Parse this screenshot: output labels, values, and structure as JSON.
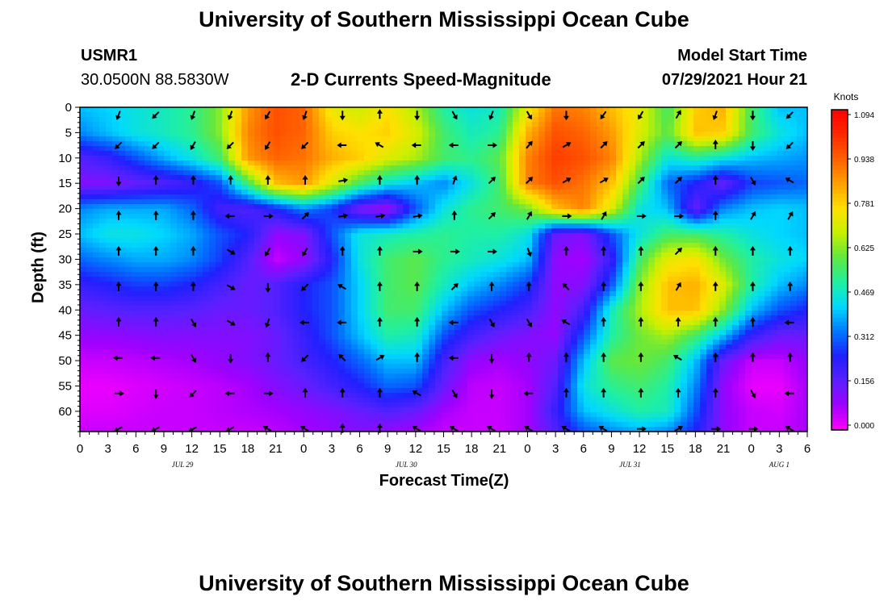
{
  "page": {
    "title_top": "University of Southern Mississippi Ocean Cube",
    "title_bottom": "University of Southern Mississippi Ocean Cube",
    "station_id": "USMR1",
    "station_coords": "30.0500N  88.5830W",
    "subtitle": "2-D Currents Speed-Magnitude",
    "model_label": "Model Start Time",
    "model_time": "07/29/2021 Hour 21"
  },
  "colors": {
    "scale": [
      "#ff00ff",
      "#a000ff",
      "#5a20ff",
      "#2020ff",
      "#0078ff",
      "#00d8ff",
      "#20f0a0",
      "#60e840",
      "#c8f000",
      "#ffe000",
      "#ffa000",
      "#ff6000",
      "#ff2800",
      "#ff0000"
    ],
    "arrow": "#000000",
    "frame": "#000000"
  },
  "chart_data": {
    "type": "heatmap",
    "title": "2-D Currents Speed-Magnitude",
    "xlabel": "Forecast Time(Z)",
    "ylabel": "Depth (ft)",
    "x_tick_labels": [
      "0",
      "3",
      "6",
      "9",
      "12",
      "15",
      "18",
      "21",
      "0",
      "3",
      "6",
      "9",
      "12",
      "15",
      "18",
      "21",
      "0",
      "3",
      "6",
      "9",
      "12",
      "15",
      "18",
      "21",
      "0",
      "3",
      "6"
    ],
    "x_hours": [
      0,
      3,
      6,
      9,
      12,
      15,
      18,
      21,
      24,
      27,
      30,
      33,
      36,
      39,
      42,
      45,
      48,
      51,
      54,
      57,
      60,
      63,
      66,
      69,
      72,
      75,
      78
    ],
    "date_labels": [
      {
        "text": "JUL 29",
        "hour": 11
      },
      {
        "text": "JUL 30",
        "hour": 35
      },
      {
        "text": "JUL 31",
        "hour": 59
      },
      {
        "text": "AUG 1",
        "hour": 75
      }
    ],
    "y_ticks": [
      0,
      5,
      10,
      15,
      20,
      25,
      30,
      35,
      40,
      45,
      50,
      55,
      60
    ],
    "xlim": [
      0,
      78
    ],
    "ylim": [
      0,
      64
    ],
    "colorbar": {
      "unit": "Knots",
      "ticks": [
        "1.094",
        "0.938",
        "0.781",
        "0.625",
        "0.469",
        "0.312",
        "0.156",
        "0.000"
      ],
      "range": [
        0,
        1.094
      ]
    },
    "speed_grid": {
      "hours": [
        0,
        3,
        6,
        9,
        12,
        15,
        18,
        21,
        24,
        27,
        30,
        33,
        36,
        39,
        42,
        45,
        48,
        51,
        54,
        57,
        60,
        63,
        66,
        69,
        72,
        75,
        78
      ],
      "depths": [
        0,
        5,
        10,
        15,
        20,
        25,
        30,
        35,
        40,
        45,
        50,
        55,
        60,
        64
      ],
      "values": [
        [
          0.4,
          0.42,
          0.45,
          0.48,
          0.52,
          0.62,
          0.85,
          0.95,
          0.92,
          0.72,
          0.68,
          0.75,
          0.65,
          0.5,
          0.45,
          0.48,
          0.72,
          0.9,
          0.88,
          0.8,
          0.72,
          0.55,
          0.78,
          0.82,
          0.55,
          0.4,
          0.4
        ],
        [
          0.35,
          0.4,
          0.45,
          0.48,
          0.52,
          0.62,
          0.88,
          0.95,
          0.92,
          0.78,
          0.75,
          0.78,
          0.7,
          0.55,
          0.48,
          0.52,
          0.82,
          0.95,
          0.92,
          0.85,
          0.7,
          0.58,
          0.8,
          0.78,
          0.55,
          0.45,
          0.4
        ],
        [
          0.18,
          0.22,
          0.3,
          0.38,
          0.45,
          0.55,
          0.85,
          0.92,
          0.9,
          0.82,
          0.78,
          0.7,
          0.65,
          0.55,
          0.52,
          0.58,
          0.88,
          0.98,
          0.95,
          0.88,
          0.65,
          0.45,
          0.5,
          0.45,
          0.4,
          0.38,
          0.36
        ],
        [
          0.12,
          0.12,
          0.15,
          0.18,
          0.22,
          0.3,
          0.55,
          0.8,
          0.85,
          0.7,
          0.55,
          0.45,
          0.4,
          0.35,
          0.45,
          0.55,
          0.88,
          0.95,
          0.9,
          0.8,
          0.55,
          0.32,
          0.25,
          0.15,
          0.28,
          0.3,
          0.32
        ],
        [
          0.35,
          0.38,
          0.38,
          0.38,
          0.32,
          0.2,
          0.18,
          0.25,
          0.35,
          0.28,
          0.12,
          0.08,
          0.3,
          0.45,
          0.52,
          0.55,
          0.6,
          0.8,
          0.88,
          0.7,
          0.45,
          0.4,
          0.15,
          0.35,
          0.4,
          0.42,
          0.4
        ],
        [
          0.4,
          0.45,
          0.45,
          0.42,
          0.38,
          0.3,
          0.25,
          0.1,
          0.12,
          0.3,
          0.45,
          0.48,
          0.5,
          0.52,
          0.5,
          0.5,
          0.45,
          0.15,
          0.12,
          0.3,
          0.45,
          0.55,
          0.55,
          0.5,
          0.45,
          0.42,
          0.4
        ],
        [
          0.32,
          0.35,
          0.38,
          0.38,
          0.35,
          0.28,
          0.18,
          0.05,
          0.1,
          0.25,
          0.45,
          0.55,
          0.58,
          0.52,
          0.48,
          0.45,
          0.4,
          0.1,
          0.08,
          0.22,
          0.55,
          0.72,
          0.75,
          0.6,
          0.5,
          0.45,
          0.42
        ],
        [
          0.22,
          0.25,
          0.28,
          0.28,
          0.25,
          0.2,
          0.15,
          0.18,
          0.25,
          0.3,
          0.42,
          0.55,
          0.58,
          0.48,
          0.4,
          0.35,
          0.28,
          0.1,
          0.12,
          0.3,
          0.62,
          0.8,
          0.82,
          0.7,
          0.5,
          0.4,
          0.35
        ],
        [
          0.15,
          0.17,
          0.18,
          0.18,
          0.17,
          0.15,
          0.15,
          0.18,
          0.25,
          0.3,
          0.42,
          0.55,
          0.55,
          0.4,
          0.3,
          0.25,
          0.2,
          0.1,
          0.2,
          0.48,
          0.65,
          0.8,
          0.8,
          0.62,
          0.4,
          0.3,
          0.25
        ],
        [
          0.1,
          0.1,
          0.11,
          0.12,
          0.12,
          0.12,
          0.12,
          0.15,
          0.22,
          0.3,
          0.4,
          0.5,
          0.48,
          0.3,
          0.2,
          0.15,
          0.12,
          0.1,
          0.3,
          0.5,
          0.6,
          0.65,
          0.55,
          0.4,
          0.22,
          0.15,
          0.15
        ],
        [
          0.05,
          0.05,
          0.06,
          0.07,
          0.08,
          0.1,
          0.12,
          0.15,
          0.2,
          0.25,
          0.32,
          0.4,
          0.4,
          0.2,
          0.1,
          0.08,
          0.1,
          0.15,
          0.4,
          0.58,
          0.6,
          0.55,
          0.4,
          0.15,
          0.05,
          0.05,
          0.1
        ],
        [
          0.02,
          0.02,
          0.03,
          0.04,
          0.05,
          0.06,
          0.08,
          0.12,
          0.15,
          0.2,
          0.25,
          0.32,
          0.3,
          0.15,
          0.06,
          0.05,
          0.08,
          0.18,
          0.45,
          0.52,
          0.55,
          0.5,
          0.35,
          0.1,
          0.02,
          0.02,
          0.08
        ],
        [
          0.03,
          0.03,
          0.04,
          0.05,
          0.05,
          0.06,
          0.07,
          0.08,
          0.1,
          0.12,
          0.15,
          0.18,
          0.15,
          0.08,
          0.05,
          0.05,
          0.08,
          0.22,
          0.4,
          0.45,
          0.5,
          0.48,
          0.3,
          0.1,
          0.05,
          0.04,
          0.08
        ],
        [
          0.05,
          0.05,
          0.05,
          0.05,
          0.05,
          0.05,
          0.05,
          0.06,
          0.08,
          0.1,
          0.12,
          0.1,
          0.08,
          0.05,
          0.05,
          0.05,
          0.08,
          0.18,
          0.3,
          0.35,
          0.38,
          0.35,
          0.25,
          0.1,
          0.05,
          0.05,
          0.08
        ]
      ]
    },
    "vectors": {
      "hours": [
        0,
        4,
        8,
        12,
        16,
        20,
        24,
        28,
        32,
        36,
        40,
        44,
        48,
        52,
        56,
        60,
        64,
        68,
        72,
        76
      ],
      "depths": [
        1,
        7,
        14,
        21,
        28,
        35,
        42,
        49,
        56,
        63
      ],
      "directions_deg": [
        [
          200,
          225,
          200,
          200,
          210,
          200,
          180,
          0,
          180,
          150,
          200,
          150,
          180,
          215,
          210,
          30,
          200,
          180,
          225,
          200
        ],
        [
          225,
          225,
          210,
          225,
          210,
          225,
          270,
          300,
          270,
          270,
          90,
          40,
          60,
          45,
          45,
          45,
          0,
          180,
          225,
          300
        ],
        [
          180,
          0,
          0,
          0,
          0,
          0,
          80,
          0,
          0,
          20,
          45,
          45,
          60,
          60,
          45,
          45,
          0,
          150,
          300,
          90
        ],
        [
          0,
          0,
          0,
          270,
          90,
          45,
          80,
          80,
          80,
          0,
          45,
          30,
          90,
          30,
          90,
          90,
          0,
          30,
          30,
          30
        ],
        [
          0,
          0,
          0,
          120,
          210,
          210,
          0,
          0,
          90,
          90,
          90,
          160,
          0,
          0,
          0,
          45,
          0,
          0,
          0,
          0
        ],
        [
          0,
          0,
          0,
          120,
          180,
          225,
          300,
          0,
          0,
          45,
          0,
          0,
          315,
          0,
          0,
          30,
          0,
          0,
          0,
          0
        ],
        [
          0,
          0,
          150,
          120,
          200,
          270,
          270,
          0,
          0,
          270,
          150,
          150,
          300,
          0,
          0,
          0,
          0,
          0,
          270,
          0
        ],
        [
          270,
          270,
          150,
          180,
          0,
          225,
          315,
          60,
          0,
          270,
          180,
          0,
          0,
          0,
          0,
          300,
          0,
          0,
          0,
          270
        ],
        [
          90,
          180,
          225,
          270,
          90,
          0,
          0,
          0,
          300,
          150,
          180,
          270,
          0,
          0,
          0,
          0,
          0,
          150,
          270,
          90
        ],
        [
          240,
          240,
          240,
          240,
          300,
          300,
          0,
          0,
          300,
          300,
          300,
          300,
          300,
          300,
          90,
          60,
          90,
          90,
          300,
          90
        ]
      ]
    }
  }
}
